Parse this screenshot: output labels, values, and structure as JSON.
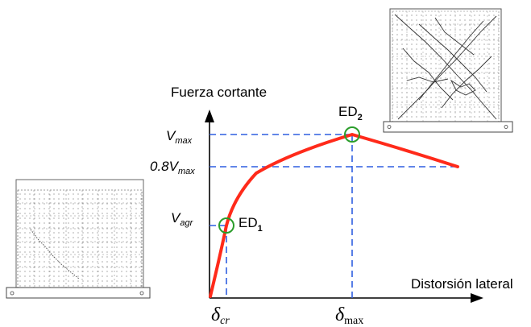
{
  "axes": {
    "y_title": "Fuerza cortante",
    "x_title": "Distorsión lateral"
  },
  "y_levels": {
    "vmax": {
      "base": "V",
      "sub": "max"
    },
    "v08max": {
      "base": "0.8V",
      "sub": "max"
    },
    "vagr": {
      "base": "V",
      "sub": "agr"
    }
  },
  "x_levels": {
    "dcr": {
      "base": "δ",
      "sub": "cr"
    },
    "dmax": {
      "base": "δ",
      "sub": "max"
    }
  },
  "damage_states": {
    "ed1": {
      "base": "ED",
      "sub": "1"
    },
    "ed2": {
      "base": "ED",
      "sub": "2"
    }
  },
  "colors": {
    "curve": "#ff2a1a",
    "guides": "#2f5fe0",
    "markers": "#2a9d2a",
    "axes": "#000000",
    "sketch": "#555555"
  },
  "specimen_icons": [
    "cracked-wall-sketch-low-damage",
    "cracked-wall-sketch-high-damage"
  ]
}
